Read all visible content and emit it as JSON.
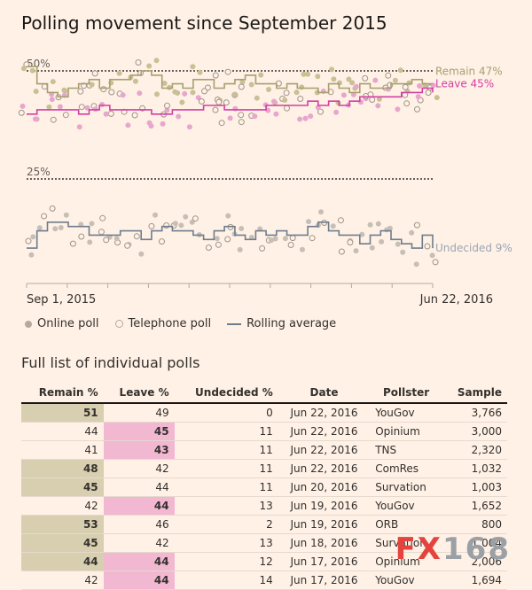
{
  "title": "Polling movement since September 2015",
  "chart_data": {
    "type": "scatter",
    "x_start_label": "Sep 1, 2015",
    "x_end_label": "Jun 22, 2016",
    "y_gridlines": [
      {
        "value": 50,
        "label": "50%"
      },
      {
        "value": 25,
        "label": "25%"
      }
    ],
    "end_labels": {
      "remain": "Remain 47%",
      "leave": "Leave 45%",
      "undecided": "Undecided 9%"
    },
    "colors": {
      "remain": "#a89f70",
      "leave": "#d33fa4",
      "undecided": "#6e7d8e",
      "online": "#b4aa9f",
      "phone_stroke": "#b4aa9f"
    },
    "series": [
      {
        "name": "Remain",
        "values": [
          51,
          47,
          45,
          44,
          46,
          47,
          48,
          46,
          48,
          48,
          49,
          50,
          49,
          46,
          47,
          46,
          48,
          48,
          46,
          47,
          48,
          49,
          47,
          47,
          46,
          47,
          46,
          46,
          45,
          47,
          46,
          45,
          47,
          46,
          46,
          47,
          47,
          48,
          47,
          47
        ]
      },
      {
        "name": "Leave",
        "values": [
          40,
          41,
          41,
          41,
          41,
          40,
          41,
          42,
          41,
          41,
          41,
          41,
          40,
          40,
          41,
          41,
          41,
          42,
          42,
          41,
          41,
          41,
          41,
          42,
          42,
          42,
          42,
          43,
          42,
          43,
          42,
          43,
          44,
          44,
          44,
          44,
          45,
          45,
          46,
          45
        ]
      },
      {
        "name": "Undecided",
        "values": [
          9,
          13,
          15,
          15,
          14,
          14,
          12,
          12,
          12,
          13,
          13,
          11,
          13,
          14,
          13,
          13,
          12,
          11,
          13,
          14,
          12,
          11,
          13,
          12,
          13,
          12,
          12,
          14,
          15,
          13,
          12,
          12,
          10,
          12,
          13,
          11,
          10,
          9,
          12,
          9
        ]
      }
    ]
  },
  "legend": {
    "online": "Online poll",
    "phone": "Telephone poll",
    "rolling": "Rolling average"
  },
  "table_title": "Full list of individual polls",
  "table": {
    "headers": [
      "Remain %",
      "Leave %",
      "Undecided %",
      "Date",
      "Pollster",
      "Sample"
    ],
    "rows": [
      {
        "remain": "51",
        "leave": "49",
        "undecided": "0",
        "date": "Jun 22, 2016",
        "pollster": "YouGov",
        "sample": "3,766",
        "hl": "remain"
      },
      {
        "remain": "44",
        "leave": "45",
        "undecided": "11",
        "date": "Jun 22, 2016",
        "pollster": "Opinium",
        "sample": "3,000",
        "hl": "leave"
      },
      {
        "remain": "41",
        "leave": "43",
        "undecided": "11",
        "date": "Jun 22, 2016",
        "pollster": "TNS",
        "sample": "2,320",
        "hl": "leave"
      },
      {
        "remain": "48",
        "leave": "42",
        "undecided": "11",
        "date": "Jun 22, 2016",
        "pollster": "ComRes",
        "sample": "1,032",
        "hl": "remain"
      },
      {
        "remain": "45",
        "leave": "44",
        "undecided": "11",
        "date": "Jun 20, 2016",
        "pollster": "Survation",
        "sample": "1,003",
        "hl": "remain"
      },
      {
        "remain": "42",
        "leave": "44",
        "undecided": "13",
        "date": "Jun 19, 2016",
        "pollster": "YouGov",
        "sample": "1,652",
        "hl": "leave"
      },
      {
        "remain": "53",
        "leave": "46",
        "undecided": "2",
        "date": "Jun 19, 2016",
        "pollster": "ORB",
        "sample": "800",
        "hl": "remain"
      },
      {
        "remain": "45",
        "leave": "42",
        "undecided": "13",
        "date": "Jun 18, 2016",
        "pollster": "Survation",
        "sample": "1,004",
        "hl": "remain"
      },
      {
        "remain": "44",
        "leave": "44",
        "undecided": "12",
        "date": "Jun 17, 2016",
        "pollster": "Opinium",
        "sample": "2,006",
        "hl": "both"
      },
      {
        "remain": "42",
        "leave": "44",
        "undecided": "14",
        "date": "Jun 17, 2016",
        "pollster": "YouGov",
        "sample": "1,694",
        "hl": "leave"
      }
    ]
  },
  "watermark": {
    "fx": "FX",
    "num": "168"
  }
}
